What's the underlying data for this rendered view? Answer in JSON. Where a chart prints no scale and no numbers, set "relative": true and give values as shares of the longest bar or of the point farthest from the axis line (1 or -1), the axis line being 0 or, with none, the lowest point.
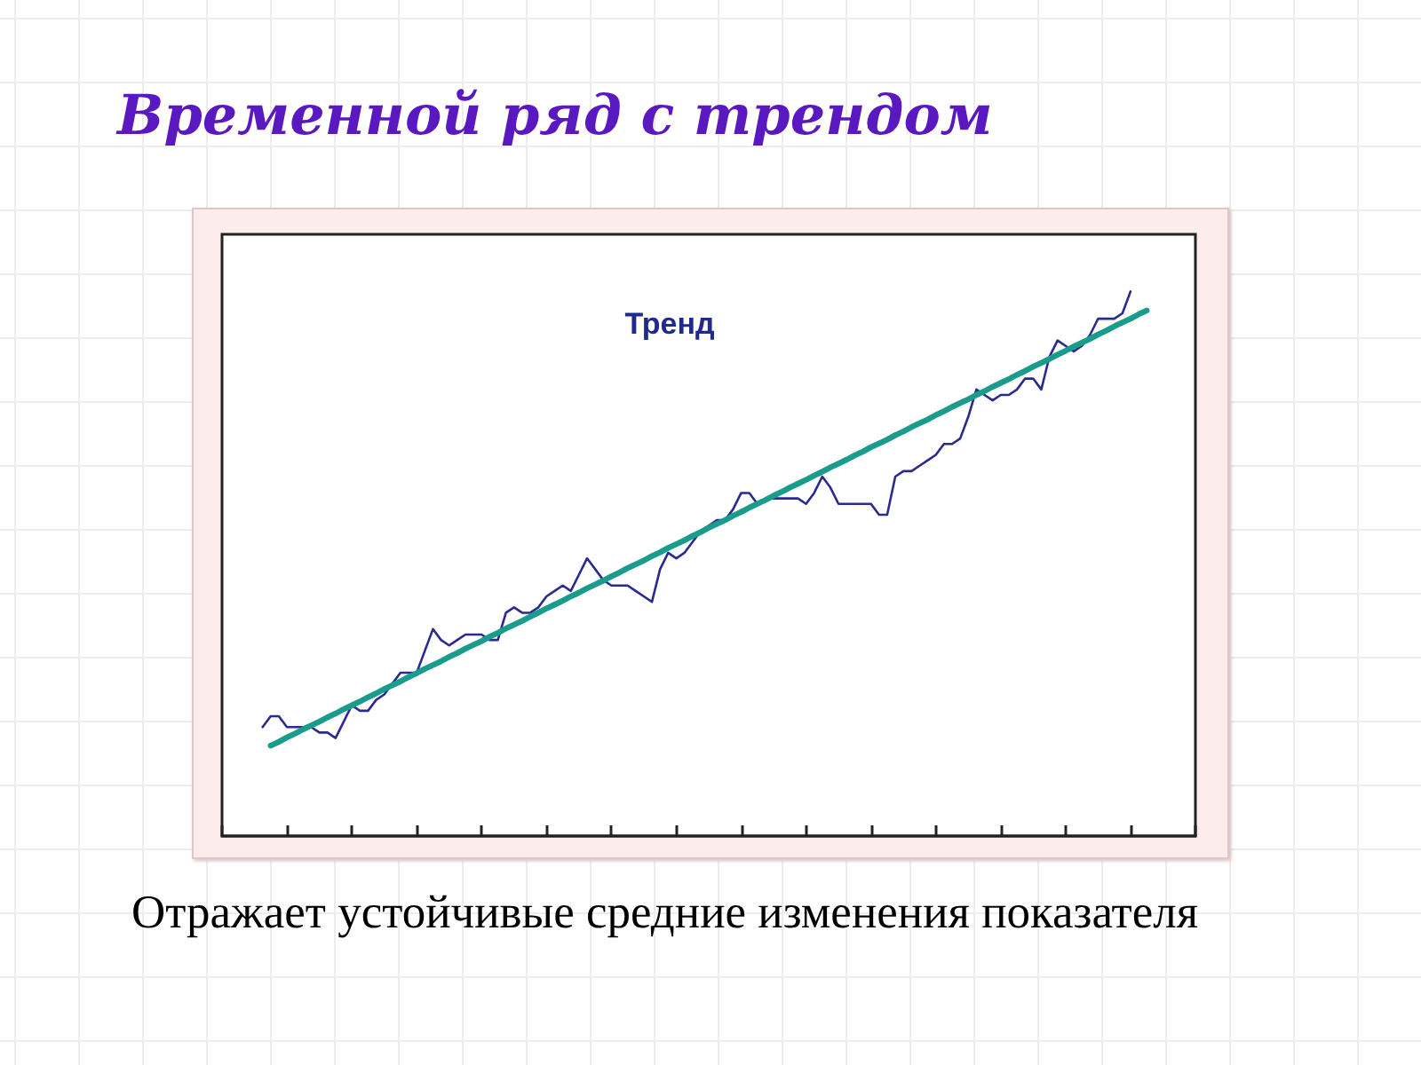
{
  "chart_data": {
    "type": "line",
    "title": "Временной ряд с трендом",
    "annotations": [
      "Тренд",
      "Отражает устойчивые средние изменения показателя"
    ],
    "categories": [
      null,
      null,
      null,
      null,
      null,
      null,
      null,
      null,
      null,
      null,
      null,
      null,
      null,
      null,
      null,
      null,
      null,
      null,
      null,
      null,
      null,
      null,
      null,
      null,
      null,
      null,
      null,
      null,
      null,
      null,
      null,
      null,
      null,
      null,
      null,
      null,
      null,
      null,
      null,
      null,
      null,
      null,
      null,
      null,
      null,
      null,
      null,
      null,
      null,
      null,
      null,
      null,
      null,
      null,
      null,
      null,
      null,
      null,
      null,
      null,
      null,
      null,
      null,
      null,
      null,
      null,
      null,
      null,
      null,
      null,
      null,
      null,
      null,
      null,
      null,
      null,
      null,
      null,
      null,
      null,
      null,
      null,
      null,
      null,
      null,
      null,
      null,
      null,
      null,
      null,
      null,
      null,
      null,
      null,
      null,
      null,
      null,
      null,
      null,
      null,
      null,
      null,
      null,
      null,
      null,
      null,
      null,
      null,
      null,
      null,
      null,
      null,
      null,
      null,
      null,
      null,
      null,
      null,
      null,
      null,
      null
    ],
    "relative": true,
    "series": [
      {
        "color": "#2a2a90",
        "values": [
          null,
          null,
          null,
          null,
          null,
          0.2,
          0.22,
          0.22,
          0.2,
          0.2,
          0.2,
          0.2,
          0.19,
          0.19,
          0.18,
          0.21,
          0.24,
          0.23,
          0.23,
          0.25,
          0.26,
          0.28,
          0.3,
          0.3,
          0.3,
          0.34,
          0.38,
          0.36,
          0.35,
          0.36,
          0.37,
          0.37,
          0.37,
          0.36,
          0.36,
          0.41,
          0.42,
          0.41,
          0.41,
          0.42,
          0.44,
          0.45,
          0.46,
          0.45,
          0.48,
          0.51,
          0.49,
          0.47,
          0.46,
          0.46,
          0.46,
          0.45,
          0.44,
          0.43,
          0.49,
          0.52,
          0.51,
          0.52,
          0.54,
          0.56,
          0.57,
          0.58,
          0.58,
          0.6,
          0.63,
          0.63,
          0.61,
          0.62,
          0.62,
          0.62,
          0.62,
          0.62,
          0.61,
          0.63,
          0.66,
          0.64,
          0.61,
          0.61,
          0.61,
          0.61,
          0.61,
          0.59,
          0.59,
          0.66,
          0.67,
          0.67,
          0.68,
          0.69,
          0.7,
          0.72,
          0.72,
          0.73,
          0.77,
          0.82,
          0.81,
          0.8,
          0.81,
          0.81,
          0.82,
          0.84,
          0.84,
          0.82,
          0.88,
          0.91,
          0.9,
          0.89,
          0.9,
          0.92,
          0.95,
          0.95,
          0.95,
          0.96,
          1,
          null,
          null,
          null,
          null,
          null,
          null,
          null,
          null
        ]
      },
      {
        "color": "#1a9c8c",
        "values": [
          null,
          null,
          null,
          null,
          null,
          null,
          0.166,
          0.173,
          0.181,
          0.188,
          0.196,
          0.203,
          0.21,
          0.218,
          0.225,
          0.233,
          0.24,
          0.247,
          0.255,
          0.262,
          0.27,
          0.277,
          0.284,
          0.292,
          0.299,
          0.307,
          0.314,
          0.321,
          0.329,
          0.336,
          0.344,
          0.351,
          0.358,
          0.366,
          0.373,
          0.381,
          0.388,
          0.395,
          0.403,
          0.41,
          0.418,
          0.425,
          0.432,
          0.44,
          0.447,
          0.455,
          0.462,
          0.469,
          0.477,
          0.484,
          0.492,
          0.499,
          0.506,
          0.514,
          0.521,
          0.529,
          0.536,
          0.543,
          0.551,
          0.558,
          0.566,
          0.573,
          0.58,
          0.588,
          0.595,
          0.603,
          0.61,
          0.617,
          0.625,
          0.632,
          0.64,
          0.647,
          0.654,
          0.662,
          0.669,
          0.677,
          0.684,
          0.691,
          0.699,
          0.706,
          0.714,
          0.721,
          0.728,
          0.736,
          0.743,
          0.751,
          0.758,
          0.765,
          0.773,
          0.78,
          0.788,
          0.795,
          0.802,
          0.81,
          0.817,
          0.825,
          0.832,
          0.839,
          0.847,
          0.854,
          0.862,
          0.869,
          0.876,
          0.884,
          0.891,
          0.899,
          0.906,
          0.913,
          0.921,
          0.928,
          0.936,
          0.943,
          0.95,
          0.958,
          0.965,
          null,
          null,
          null,
          null,
          null,
          null
        ]
      }
    ],
    "grid": false
  }
}
